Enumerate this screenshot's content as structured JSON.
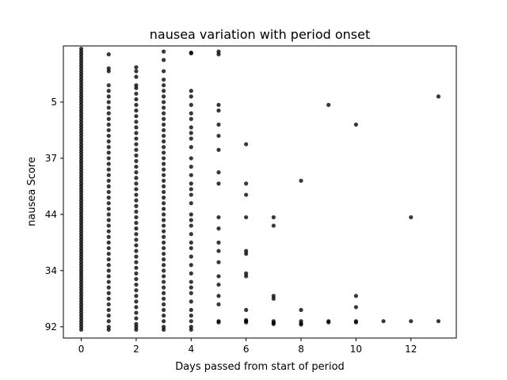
{
  "chart_data": {
    "type": "scatter",
    "title": "nausea variation with period onset",
    "xlabel": "Days passed from start of period",
    "ylabel": "nausea Score",
    "xlim": [
      -0.65,
      13.65
    ],
    "xticks": [
      0,
      2,
      4,
      6,
      8,
      10,
      12
    ],
    "y_categories": [
      "5",
      "37",
      "44",
      "34",
      "92"
    ],
    "y_category_positions": [
      4,
      3,
      2,
      1,
      0
    ],
    "ylim": [
      -0.2,
      5.0
    ],
    "grid": false,
    "marker_color": "#000000",
    "points": [
      {
        "x": 0,
        "y": 4.95
      },
      {
        "x": 0,
        "y": 4.9
      },
      {
        "x": 0,
        "y": 4.85
      },
      {
        "x": 0,
        "y": 4.8
      },
      {
        "x": 0,
        "y": 4.75
      },
      {
        "x": 0,
        "y": 4.7
      },
      {
        "x": 0,
        "y": 4.65
      },
      {
        "x": 0,
        "y": 4.6
      },
      {
        "x": 0,
        "y": 4.55
      },
      {
        "x": 0,
        "y": 4.5
      },
      {
        "x": 0,
        "y": 4.45
      },
      {
        "x": 0,
        "y": 4.4
      },
      {
        "x": 0,
        "y": 4.35
      },
      {
        "x": 0,
        "y": 4.3
      },
      {
        "x": 0,
        "y": 4.25
      },
      {
        "x": 0,
        "y": 4.2
      },
      {
        "x": 0,
        "y": 4.15
      },
      {
        "x": 0,
        "y": 4.1
      },
      {
        "x": 0,
        "y": 4.05
      },
      {
        "x": 0,
        "y": 4.0
      },
      {
        "x": 0,
        "y": 3.95
      },
      {
        "x": 0,
        "y": 3.9
      },
      {
        "x": 0,
        "y": 3.85
      },
      {
        "x": 0,
        "y": 3.8
      },
      {
        "x": 0,
        "y": 3.75
      },
      {
        "x": 0,
        "y": 3.7
      },
      {
        "x": 0,
        "y": 3.65
      },
      {
        "x": 0,
        "y": 3.6
      },
      {
        "x": 0,
        "y": 3.55
      },
      {
        "x": 0,
        "y": 3.5
      },
      {
        "x": 0,
        "y": 3.45
      },
      {
        "x": 0,
        "y": 3.4
      },
      {
        "x": 0,
        "y": 3.35
      },
      {
        "x": 0,
        "y": 3.3
      },
      {
        "x": 0,
        "y": 3.25
      },
      {
        "x": 0,
        "y": 3.2
      },
      {
        "x": 0,
        "y": 3.15
      },
      {
        "x": 0,
        "y": 3.1
      },
      {
        "x": 0,
        "y": 3.05
      },
      {
        "x": 0,
        "y": 3.0
      },
      {
        "x": 0,
        "y": 2.95
      },
      {
        "x": 0,
        "y": 2.9
      },
      {
        "x": 0,
        "y": 2.85
      },
      {
        "x": 0,
        "y": 2.8
      },
      {
        "x": 0,
        "y": 2.75
      },
      {
        "x": 0,
        "y": 2.7
      },
      {
        "x": 0,
        "y": 2.65
      },
      {
        "x": 0,
        "y": 2.6
      },
      {
        "x": 0,
        "y": 2.55
      },
      {
        "x": 0,
        "y": 2.5
      },
      {
        "x": 0,
        "y": 2.45
      },
      {
        "x": 0,
        "y": 2.4
      },
      {
        "x": 0,
        "y": 2.35
      },
      {
        "x": 0,
        "y": 2.3
      },
      {
        "x": 0,
        "y": 2.25
      },
      {
        "x": 0,
        "y": 2.2
      },
      {
        "x": 0,
        "y": 2.15
      },
      {
        "x": 0,
        "y": 2.1
      },
      {
        "x": 0,
        "y": 2.05
      },
      {
        "x": 0,
        "y": 2.0
      },
      {
        "x": 0,
        "y": 1.95
      },
      {
        "x": 0,
        "y": 1.9
      },
      {
        "x": 0,
        "y": 1.85
      },
      {
        "x": 0,
        "y": 1.8
      },
      {
        "x": 0,
        "y": 1.75
      },
      {
        "x": 0,
        "y": 1.7
      },
      {
        "x": 0,
        "y": 1.65
      },
      {
        "x": 0,
        "y": 1.6
      },
      {
        "x": 0,
        "y": 1.55
      },
      {
        "x": 0,
        "y": 1.5
      },
      {
        "x": 0,
        "y": 1.45
      },
      {
        "x": 0,
        "y": 1.4
      },
      {
        "x": 0,
        "y": 1.35
      },
      {
        "x": 0,
        "y": 1.3
      },
      {
        "x": 0,
        "y": 1.25
      },
      {
        "x": 0,
        "y": 1.2
      },
      {
        "x": 0,
        "y": 1.15
      },
      {
        "x": 0,
        "y": 1.1
      },
      {
        "x": 0,
        "y": 1.05
      },
      {
        "x": 0,
        "y": 1.0
      },
      {
        "x": 0,
        "y": 0.95
      },
      {
        "x": 0,
        "y": 0.9
      },
      {
        "x": 0,
        "y": 0.85
      },
      {
        "x": 0,
        "y": 0.8
      },
      {
        "x": 0,
        "y": 0.75
      },
      {
        "x": 0,
        "y": 0.7
      },
      {
        "x": 0,
        "y": 0.65
      },
      {
        "x": 0,
        "y": 0.6
      },
      {
        "x": 0,
        "y": 0.55
      },
      {
        "x": 0,
        "y": 0.5
      },
      {
        "x": 0,
        "y": 0.45
      },
      {
        "x": 0,
        "y": 0.4
      },
      {
        "x": 0,
        "y": 0.35
      },
      {
        "x": 0,
        "y": 0.3
      },
      {
        "x": 0,
        "y": 0.25
      },
      {
        "x": 0,
        "y": 0.2
      },
      {
        "x": 0,
        "y": 0.15
      },
      {
        "x": 0,
        "y": 0.1
      },
      {
        "x": 0,
        "y": 0.05
      },
      {
        "x": 0,
        "y": 0.0
      },
      {
        "x": 0,
        "y": -0.05
      },
      {
        "x": 1,
        "y": 4.85
      },
      {
        "x": 1,
        "y": 4.6
      },
      {
        "x": 1,
        "y": 4.55
      },
      {
        "x": 1,
        "y": 4.3
      },
      {
        "x": 1,
        "y": 4.2
      },
      {
        "x": 1,
        "y": 4.1
      },
      {
        "x": 1,
        "y": 4.0
      },
      {
        "x": 1,
        "y": 3.9
      },
      {
        "x": 1,
        "y": 3.8
      },
      {
        "x": 1,
        "y": 3.7
      },
      {
        "x": 1,
        "y": 3.6
      },
      {
        "x": 1,
        "y": 3.5
      },
      {
        "x": 1,
        "y": 3.4
      },
      {
        "x": 1,
        "y": 3.3
      },
      {
        "x": 1,
        "y": 3.2
      },
      {
        "x": 1,
        "y": 3.1
      },
      {
        "x": 1,
        "y": 3.0
      },
      {
        "x": 1,
        "y": 2.9
      },
      {
        "x": 1,
        "y": 2.8
      },
      {
        "x": 1,
        "y": 2.7
      },
      {
        "x": 1,
        "y": 2.6
      },
      {
        "x": 1,
        "y": 2.5
      },
      {
        "x": 1,
        "y": 2.4
      },
      {
        "x": 1,
        "y": 2.3
      },
      {
        "x": 1,
        "y": 2.2
      },
      {
        "x": 1,
        "y": 2.1
      },
      {
        "x": 1,
        "y": 2.0
      },
      {
        "x": 1,
        "y": 1.9
      },
      {
        "x": 1,
        "y": 1.8
      },
      {
        "x": 1,
        "y": 1.7
      },
      {
        "x": 1,
        "y": 1.6
      },
      {
        "x": 1,
        "y": 1.5
      },
      {
        "x": 1,
        "y": 1.4
      },
      {
        "x": 1,
        "y": 1.3
      },
      {
        "x": 1,
        "y": 1.2
      },
      {
        "x": 1,
        "y": 1.1
      },
      {
        "x": 1,
        "y": 1.0
      },
      {
        "x": 1,
        "y": 0.9
      },
      {
        "x": 1,
        "y": 0.8
      },
      {
        "x": 1,
        "y": 0.7
      },
      {
        "x": 1,
        "y": 0.6
      },
      {
        "x": 1,
        "y": 0.5
      },
      {
        "x": 1,
        "y": 0.4
      },
      {
        "x": 1,
        "y": 0.3
      },
      {
        "x": 1,
        "y": 0.2
      },
      {
        "x": 1,
        "y": 0.1
      },
      {
        "x": 1,
        "y": 0.0
      },
      {
        "x": 1,
        "y": -0.05
      },
      {
        "x": 2,
        "y": 4.62
      },
      {
        "x": 2,
        "y": 4.55
      },
      {
        "x": 2,
        "y": 4.45
      },
      {
        "x": 2,
        "y": 4.3
      },
      {
        "x": 2,
        "y": 4.25
      },
      {
        "x": 2,
        "y": 4.15
      },
      {
        "x": 2,
        "y": 4.05
      },
      {
        "x": 2,
        "y": 3.95
      },
      {
        "x": 2,
        "y": 3.85
      },
      {
        "x": 2,
        "y": 3.75
      },
      {
        "x": 2,
        "y": 3.65
      },
      {
        "x": 2,
        "y": 3.55
      },
      {
        "x": 2,
        "y": 3.45
      },
      {
        "x": 2,
        "y": 3.35
      },
      {
        "x": 2,
        "y": 3.25
      },
      {
        "x": 2,
        "y": 3.15
      },
      {
        "x": 2,
        "y": 3.05
      },
      {
        "x": 2,
        "y": 2.95
      },
      {
        "x": 2,
        "y": 2.85
      },
      {
        "x": 2,
        "y": 2.75
      },
      {
        "x": 2,
        "y": 2.65
      },
      {
        "x": 2,
        "y": 2.55
      },
      {
        "x": 2,
        "y": 2.45
      },
      {
        "x": 2,
        "y": 2.35
      },
      {
        "x": 2,
        "y": 2.25
      },
      {
        "x": 2,
        "y": 2.15
      },
      {
        "x": 2,
        "y": 2.05
      },
      {
        "x": 2,
        "y": 1.95
      },
      {
        "x": 2,
        "y": 1.85
      },
      {
        "x": 2,
        "y": 1.75
      },
      {
        "x": 2,
        "y": 1.65
      },
      {
        "x": 2,
        "y": 1.55
      },
      {
        "x": 2,
        "y": 1.45
      },
      {
        "x": 2,
        "y": 1.35
      },
      {
        "x": 2,
        "y": 1.25
      },
      {
        "x": 2,
        "y": 1.15
      },
      {
        "x": 2,
        "y": 1.05
      },
      {
        "x": 2,
        "y": 0.95
      },
      {
        "x": 2,
        "y": 0.85
      },
      {
        "x": 2,
        "y": 0.75
      },
      {
        "x": 2,
        "y": 0.65
      },
      {
        "x": 2,
        "y": 0.55
      },
      {
        "x": 2,
        "y": 0.45
      },
      {
        "x": 2,
        "y": 0.35
      },
      {
        "x": 2,
        "y": 0.25
      },
      {
        "x": 2,
        "y": 0.15
      },
      {
        "x": 2,
        "y": 0.05
      },
      {
        "x": 2,
        "y": 0.0
      },
      {
        "x": 2,
        "y": -0.05
      },
      {
        "x": 3,
        "y": 4.9
      },
      {
        "x": 3,
        "y": 4.75
      },
      {
        "x": 3,
        "y": 4.55
      },
      {
        "x": 3,
        "y": 4.4
      },
      {
        "x": 3,
        "y": 4.3
      },
      {
        "x": 3,
        "y": 4.2
      },
      {
        "x": 3,
        "y": 4.1
      },
      {
        "x": 3,
        "y": 4.0
      },
      {
        "x": 3,
        "y": 3.9
      },
      {
        "x": 3,
        "y": 3.8
      },
      {
        "x": 3,
        "y": 3.7
      },
      {
        "x": 3,
        "y": 3.6
      },
      {
        "x": 3,
        "y": 3.5
      },
      {
        "x": 3,
        "y": 3.4
      },
      {
        "x": 3,
        "y": 3.3
      },
      {
        "x": 3,
        "y": 3.2
      },
      {
        "x": 3,
        "y": 3.1
      },
      {
        "x": 3,
        "y": 3.0
      },
      {
        "x": 3,
        "y": 2.9
      },
      {
        "x": 3,
        "y": 2.8
      },
      {
        "x": 3,
        "y": 2.7
      },
      {
        "x": 3,
        "y": 2.6
      },
      {
        "x": 3,
        "y": 2.5
      },
      {
        "x": 3,
        "y": 2.4
      },
      {
        "x": 3,
        "y": 2.3
      },
      {
        "x": 3,
        "y": 2.2
      },
      {
        "x": 3,
        "y": 2.1
      },
      {
        "x": 3,
        "y": 2.0
      },
      {
        "x": 3,
        "y": 1.9
      },
      {
        "x": 3,
        "y": 1.8
      },
      {
        "x": 3,
        "y": 1.7
      },
      {
        "x": 3,
        "y": 1.6
      },
      {
        "x": 3,
        "y": 1.5
      },
      {
        "x": 3,
        "y": 1.4
      },
      {
        "x": 3,
        "y": 1.3
      },
      {
        "x": 3,
        "y": 1.2
      },
      {
        "x": 3,
        "y": 1.1
      },
      {
        "x": 3,
        "y": 1.0
      },
      {
        "x": 3,
        "y": 0.9
      },
      {
        "x": 3,
        "y": 0.8
      },
      {
        "x": 3,
        "y": 0.7
      },
      {
        "x": 3,
        "y": 0.6
      },
      {
        "x": 3,
        "y": 0.5
      },
      {
        "x": 3,
        "y": 0.4
      },
      {
        "x": 3,
        "y": 0.3
      },
      {
        "x": 3,
        "y": 0.2
      },
      {
        "x": 3,
        "y": 0.1
      },
      {
        "x": 3,
        "y": 0.0
      },
      {
        "x": 3,
        "y": -0.05
      },
      {
        "x": 4,
        "y": 4.88
      },
      {
        "x": 4,
        "y": 4.87
      },
      {
        "x": 4,
        "y": 4.2
      },
      {
        "x": 4,
        "y": 4.1
      },
      {
        "x": 4,
        "y": 3.95
      },
      {
        "x": 4,
        "y": 3.8
      },
      {
        "x": 4,
        "y": 3.7
      },
      {
        "x": 4,
        "y": 3.55
      },
      {
        "x": 4,
        "y": 3.45
      },
      {
        "x": 4,
        "y": 3.35
      },
      {
        "x": 4,
        "y": 3.2
      },
      {
        "x": 4,
        "y": 3.0
      },
      {
        "x": 4,
        "y": 2.85
      },
      {
        "x": 4,
        "y": 2.7
      },
      {
        "x": 4,
        "y": 2.55
      },
      {
        "x": 4,
        "y": 2.45
      },
      {
        "x": 4,
        "y": 2.35
      },
      {
        "x": 4,
        "y": 2.2
      },
      {
        "x": 4,
        "y": 2.0
      },
      {
        "x": 4,
        "y": 1.9
      },
      {
        "x": 4,
        "y": 1.8
      },
      {
        "x": 4,
        "y": 1.65
      },
      {
        "x": 4,
        "y": 1.5
      },
      {
        "x": 4,
        "y": 1.4
      },
      {
        "x": 4,
        "y": 1.25
      },
      {
        "x": 4,
        "y": 1.1
      },
      {
        "x": 4,
        "y": 0.95
      },
      {
        "x": 4,
        "y": 0.8
      },
      {
        "x": 4,
        "y": 0.7
      },
      {
        "x": 4,
        "y": 0.6
      },
      {
        "x": 4,
        "y": 0.45
      },
      {
        "x": 4,
        "y": 0.3
      },
      {
        "x": 4,
        "y": 0.2
      },
      {
        "x": 4,
        "y": 0.1
      },
      {
        "x": 4,
        "y": 0.0
      },
      {
        "x": 4,
        "y": -0.05
      },
      {
        "x": 5,
        "y": 4.9
      },
      {
        "x": 5,
        "y": 4.85
      },
      {
        "x": 5,
        "y": 3.95
      },
      {
        "x": 5,
        "y": 3.85
      },
      {
        "x": 5,
        "y": 3.6
      },
      {
        "x": 5,
        "y": 3.4
      },
      {
        "x": 5,
        "y": 3.15
      },
      {
        "x": 5,
        "y": 2.75
      },
      {
        "x": 5,
        "y": 2.55
      },
      {
        "x": 5,
        "y": 1.95
      },
      {
        "x": 5,
        "y": 1.75
      },
      {
        "x": 5,
        "y": 1.5
      },
      {
        "x": 5,
        "y": 1.35
      },
      {
        "x": 5,
        "y": 1.15
      },
      {
        "x": 5,
        "y": 0.9
      },
      {
        "x": 5,
        "y": 0.75
      },
      {
        "x": 5,
        "y": 0.55
      },
      {
        "x": 5,
        "y": 0.4
      },
      {
        "x": 5,
        "y": 0.1
      },
      {
        "x": 5,
        "y": 0.08
      },
      {
        "x": 6,
        "y": 3.25
      },
      {
        "x": 6,
        "y": 2.55
      },
      {
        "x": 6,
        "y": 2.35
      },
      {
        "x": 6,
        "y": 1.95
      },
      {
        "x": 6,
        "y": 1.35
      },
      {
        "x": 6,
        "y": 1.3
      },
      {
        "x": 6,
        "y": 0.95
      },
      {
        "x": 6,
        "y": 0.9
      },
      {
        "x": 6,
        "y": 0.3
      },
      {
        "x": 6,
        "y": 0.12
      },
      {
        "x": 6,
        "y": 0.1
      },
      {
        "x": 6,
        "y": 0.08
      },
      {
        "x": 7,
        "y": 1.95
      },
      {
        "x": 7,
        "y": 1.8
      },
      {
        "x": 7,
        "y": 0.55
      },
      {
        "x": 7,
        "y": 0.5
      },
      {
        "x": 7,
        "y": 0.1
      },
      {
        "x": 7,
        "y": 0.07
      },
      {
        "x": 7,
        "y": 0.05
      },
      {
        "x": 8,
        "y": 2.6
      },
      {
        "x": 8,
        "y": 0.3
      },
      {
        "x": 8,
        "y": 0.1
      },
      {
        "x": 8,
        "y": 0.06
      },
      {
        "x": 8,
        "y": 0.04
      },
      {
        "x": 9,
        "y": 3.95
      },
      {
        "x": 9,
        "y": 0.1
      },
      {
        "x": 9,
        "y": 0.08
      },
      {
        "x": 10,
        "y": 3.6
      },
      {
        "x": 10,
        "y": 0.55
      },
      {
        "x": 10,
        "y": 0.35
      },
      {
        "x": 10,
        "y": 0.1
      },
      {
        "x": 10,
        "y": 0.08
      },
      {
        "x": 11,
        "y": 0.1
      },
      {
        "x": 12,
        "y": 1.95
      },
      {
        "x": 12,
        "y": 0.1
      },
      {
        "x": 13,
        "y": 4.1
      },
      {
        "x": 13,
        "y": 0.1
      }
    ]
  }
}
